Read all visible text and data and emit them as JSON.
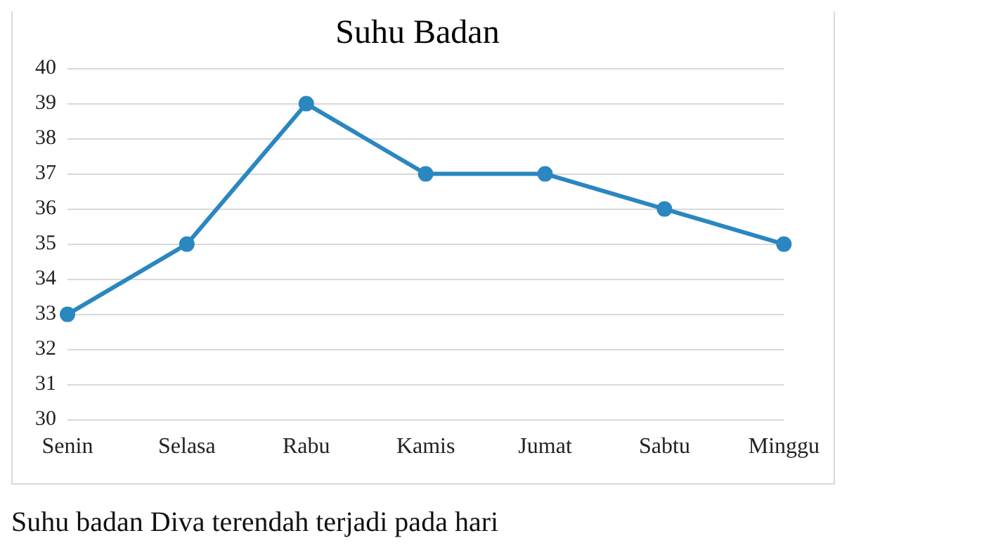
{
  "chart_data": {
    "type": "line",
    "title": "Suhu Badan",
    "categories": [
      "Senin",
      "Selasa",
      "Rabu",
      "Kamis",
      "Jumat",
      "Sabtu",
      "Minggu"
    ],
    "series": [
      {
        "color": "#2a87c0",
        "values": [
          33,
          35,
          39,
          37,
          37,
          36,
          35
        ]
      }
    ],
    "ylim": [
      30,
      40
    ],
    "yticks": [
      30,
      31,
      32,
      33,
      34,
      35,
      36,
      37,
      38,
      39,
      40
    ],
    "grid": "y",
    "legend": false,
    "marker": "circle",
    "line_style": "solid",
    "annotations": [
      "Suhu badan Diva terendah terjadi pada hari"
    ]
  }
}
